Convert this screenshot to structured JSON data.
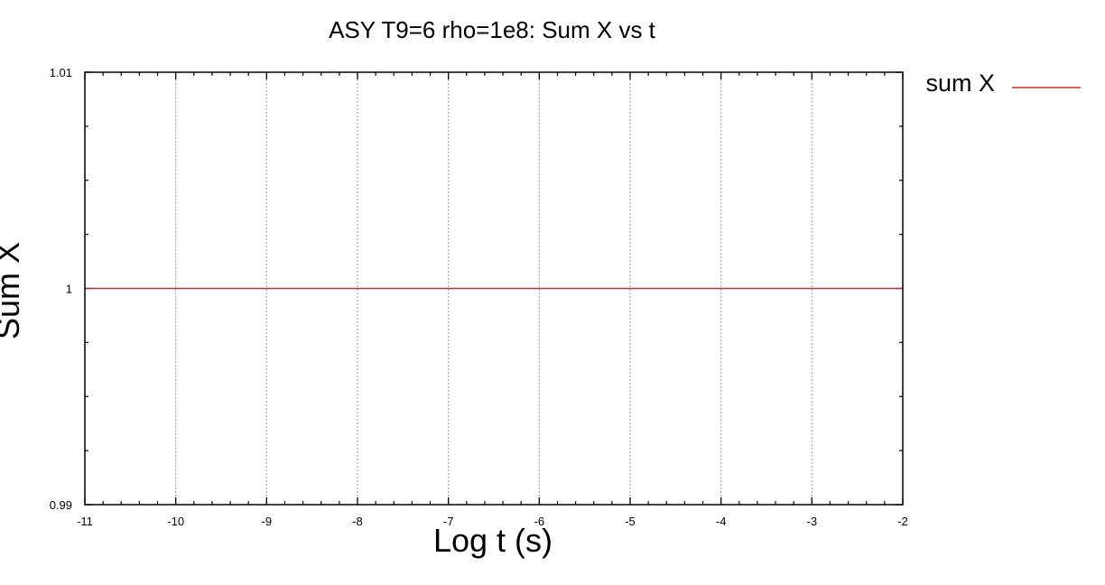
{
  "chart_data": {
    "type": "line",
    "title": "ASY T9=6 rho=1e8: Sum X  vs t",
    "xlabel": "Log t (s)",
    "ylabel": "Sum X",
    "xlim": [
      -11,
      -2
    ],
    "ylim": [
      0.99,
      1.01
    ],
    "x_ticks": [
      -11,
      -10,
      -9,
      -8,
      -7,
      -6,
      -5,
      -4,
      -3,
      -2
    ],
    "x_tick_labels": [
      "-11",
      "-10",
      "-9",
      "-8",
      "-7",
      "-6",
      "-5",
      "-4",
      "-3",
      "-2"
    ],
    "y_ticks": [
      0.99,
      1,
      1.01
    ],
    "y_tick_labels": [
      "0.99",
      "1",
      "1.01"
    ],
    "x_minor_step": 0.2,
    "y_minor_step": 0.0025,
    "grid": "vertical dotted at major x ticks",
    "legend_position": "right, outside plot",
    "series": [
      {
        "name": "sum X",
        "color": "#d62728",
        "x": [
          -11,
          -10,
          -9,
          -8,
          -7,
          -6,
          -5,
          -4,
          -3,
          -2
        ],
        "y": [
          1,
          1,
          1,
          1,
          1,
          1,
          1,
          1,
          1,
          1
        ]
      }
    ]
  }
}
